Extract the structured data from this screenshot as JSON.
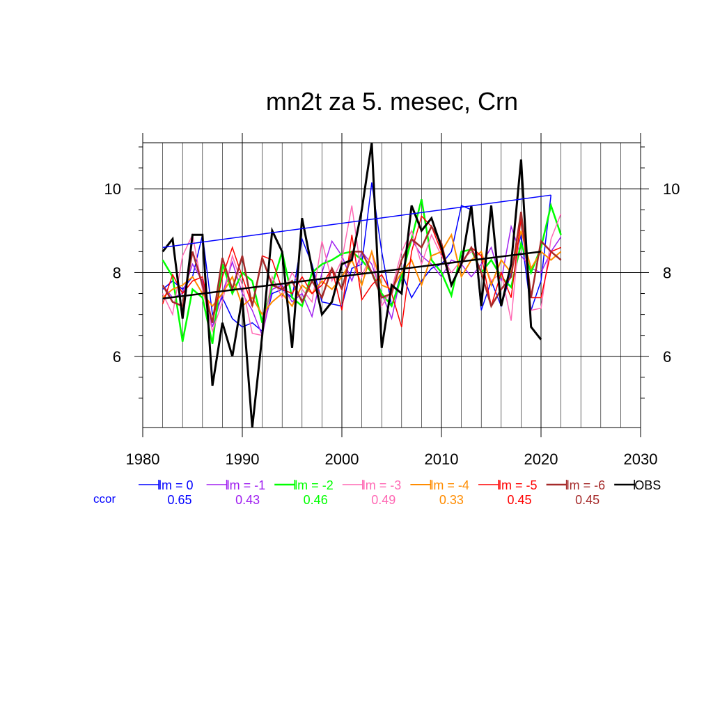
{
  "chart_data": {
    "type": "line",
    "title": "mn2t za 5. mesec, Crn",
    "xlabel": "",
    "ylabel": "",
    "xlim": [
      1980,
      2030
    ],
    "ylim": [
      4.3,
      11.1
    ],
    "x_ticks": [
      1980,
      1990,
      2000,
      2010,
      2020,
      2030
    ],
    "y_ticks": [
      6,
      8,
      10
    ],
    "grid": true,
    "ccor_label": "ccor",
    "series": [
      {
        "name": "lm = 0",
        "color": "#0000ff",
        "width": 1.5,
        "ccor": "0.65",
        "x": [
          1982,
          1983,
          1984,
          1985,
          1986,
          1987,
          1988,
          1989,
          1990,
          1991,
          1992,
          1993,
          1994,
          1995,
          1996,
          1997,
          1998,
          1999,
          2000,
          2001,
          2002,
          2003,
          2004,
          2005,
          2006,
          2007,
          2008,
          2009,
          2010,
          2011,
          2012,
          2013,
          2014,
          2015,
          2016,
          2017,
          2018,
          2019,
          2020,
          2021
        ],
        "y": [
          7.6,
          7.8,
          7.6,
          7.9,
          8.9,
          7.0,
          7.4,
          6.9,
          6.7,
          6.8,
          6.6,
          7.5,
          7.6,
          7.4,
          8.8,
          8.2,
          7.3,
          7.25,
          7.2,
          8.1,
          8.2,
          10.15,
          8.5,
          7.2,
          8.0,
          7.4,
          7.8,
          8.1,
          8.2,
          8.5,
          9.6,
          9.5,
          7.1,
          7.8,
          7.2,
          8.0,
          8.9,
          7.1,
          7.8,
          9.85
        ]
      },
      {
        "name": "lm = -1",
        "color": "#a020f0",
        "width": 1.5,
        "ccor": "0.43",
        "x": [
          1982,
          1983,
          1984,
          1985,
          1986,
          1987,
          1988,
          1989,
          1990,
          1991,
          1992,
          1993,
          1994,
          1995,
          1996,
          1997,
          1998,
          1999,
          2000,
          2001,
          2002,
          2003,
          2004,
          2005,
          2006,
          2007,
          2008,
          2009,
          2010,
          2011,
          2012,
          2013,
          2014,
          2015,
          2016,
          2017,
          2018,
          2019,
          2020,
          2021,
          2022
        ],
        "y": [
          7.7,
          7.4,
          7.5,
          8.2,
          7.8,
          6.7,
          7.5,
          8.25,
          7.5,
          7.1,
          6.5,
          7.6,
          7.7,
          7.3,
          7.5,
          6.95,
          8.0,
          8.75,
          8.4,
          7.8,
          8.5,
          8.2,
          7.5,
          6.9,
          8.0,
          8.8,
          8.4,
          8.2,
          7.9,
          8.3,
          8.2,
          7.9,
          8.2,
          8.6,
          7.8,
          9.1,
          8.4,
          8.1,
          8.0,
          8.5,
          8.85
        ]
      },
      {
        "name": "lm = -2",
        "color": "#00ff00",
        "width": 2.5,
        "ccor": "0.46",
        "x": [
          1982,
          1983,
          1984,
          1985,
          1986,
          1987,
          1988,
          1989,
          1990,
          1991,
          1992,
          1993,
          1994,
          1995,
          1996,
          1997,
          1998,
          1999,
          2000,
          2001,
          2002,
          2003,
          2004,
          2005,
          2006,
          2007,
          2008,
          2009,
          2010,
          2011,
          2012,
          2013,
          2014,
          2015,
          2016,
          2017,
          2018,
          2019,
          2020,
          2021,
          2022
        ],
        "y": [
          8.3,
          7.9,
          6.35,
          7.6,
          7.4,
          6.3,
          8.2,
          7.5,
          8.0,
          7.8,
          6.8,
          7.7,
          8.5,
          7.4,
          7.2,
          8.0,
          8.2,
          8.3,
          8.45,
          8.5,
          8.3,
          8.0,
          7.5,
          7.2,
          7.9,
          8.8,
          9.75,
          8.3,
          8.0,
          7.45,
          8.5,
          8.55,
          8.0,
          8.3,
          7.9,
          7.65,
          8.7,
          8.0,
          8.6,
          9.6,
          8.9
        ]
      },
      {
        "name": "lm = -3",
        "color": "#ff69b4",
        "width": 1.5,
        "ccor": "0.49",
        "x": [
          1982,
          1983,
          1984,
          1985,
          1986,
          1987,
          1988,
          1989,
          1990,
          1991,
          1992,
          1993,
          1994,
          1995,
          1996,
          1997,
          1998,
          1999,
          2000,
          2001,
          2002,
          2003,
          2004,
          2005,
          2006,
          2007,
          2008,
          2009,
          2010,
          2011,
          2012,
          2013,
          2014,
          2015,
          2016,
          2017,
          2018,
          2019,
          2020,
          2021,
          2022
        ],
        "y": [
          7.5,
          7.0,
          8.4,
          8.9,
          7.6,
          6.6,
          7.3,
          8.4,
          7.7,
          6.55,
          6.5,
          7.9,
          7.4,
          8.0,
          7.6,
          7.3,
          8.75,
          7.8,
          8.3,
          9.6,
          7.9,
          8.5,
          7.2,
          7.6,
          8.5,
          9.0,
          8.2,
          8.9,
          8.4,
          8.0,
          8.3,
          8.5,
          8.4,
          7.8,
          8.0,
          6.85,
          9.4,
          7.1,
          7.15,
          8.8,
          9.4
        ]
      },
      {
        "name": "lm = -4",
        "color": "#ff8c00",
        "width": 2.0,
        "ccor": "0.33",
        "x": [
          1982,
          1983,
          1984,
          1985,
          1986,
          1987,
          1988,
          1989,
          1990,
          1991,
          1992,
          1993,
          1994,
          1995,
          1996,
          1997,
          1998,
          1999,
          2000,
          2001,
          2002,
          2003,
          2004,
          2005,
          2006,
          2007,
          2008,
          2009,
          2010,
          2011,
          2012,
          2013,
          2014,
          2015,
          2016,
          2017,
          2018,
          2019,
          2020,
          2021,
          2022
        ],
        "y": [
          7.4,
          7.6,
          7.7,
          7.9,
          7.5,
          7.2,
          7.5,
          7.9,
          7.2,
          7.4,
          7.0,
          7.3,
          7.5,
          7.2,
          7.7,
          7.5,
          7.8,
          7.6,
          7.9,
          8.3,
          7.7,
          8.5,
          7.7,
          7.6,
          8.0,
          8.3,
          7.7,
          8.4,
          8.5,
          8.9,
          7.9,
          8.3,
          8.5,
          7.7,
          8.3,
          8.0,
          9.0,
          8.1,
          8.5,
          8.3,
          8.5
        ]
      },
      {
        "name": "lm = -5",
        "color": "#ff0000",
        "width": 1.5,
        "ccor": "0.45",
        "x": [
          1982,
          1983,
          1984,
          1985,
          1986,
          1987,
          1988,
          1989,
          1990,
          1991,
          1992,
          1993,
          1994,
          1995,
          1996,
          1997,
          1998,
          1999,
          2000,
          2001,
          2002,
          2003,
          2004,
          2005,
          2006,
          2007,
          2008,
          2009,
          2010,
          2011,
          2012,
          2013,
          2014,
          2015,
          2016,
          2017,
          2018,
          2019,
          2020,
          2021,
          2022
        ],
        "y": [
          7.25,
          7.95,
          7.5,
          7.8,
          7.9,
          6.8,
          7.9,
          8.6,
          7.9,
          7.2,
          8.4,
          8.3,
          7.6,
          7.5,
          7.9,
          7.5,
          7.7,
          8.1,
          7.1,
          8.9,
          7.35,
          7.7,
          7.95,
          7.5,
          6.7,
          8.5,
          9.35,
          9.1,
          8.5,
          7.7,
          8.2,
          8.6,
          8.4,
          7.2,
          8.0,
          7.4,
          9.3,
          7.4,
          7.4,
          8.5,
          8.6
        ]
      },
      {
        "name": "lm = -6",
        "color": "#a52a2a",
        "width": 2.5,
        "ccor": "0.45",
        "x": [
          1982,
          1983,
          1984,
          1985,
          1986,
          1987,
          1988,
          1989,
          1990,
          1991,
          1992,
          1993,
          1994,
          1995,
          1996,
          1997,
          1998,
          1999,
          2000,
          2001,
          2002,
          2003,
          2004,
          2005,
          2006,
          2007,
          2008,
          2009,
          2010,
          2011,
          2012,
          2013,
          2014,
          2015,
          2016,
          2017,
          2018,
          2019,
          2020,
          2021,
          2022
        ],
        "y": [
          7.7,
          7.3,
          7.2,
          8.5,
          7.7,
          6.8,
          8.35,
          7.6,
          8.4,
          7.2,
          8.35,
          7.7,
          7.6,
          7.8,
          7.3,
          7.8,
          7.4,
          8.1,
          7.6,
          8.5,
          8.5,
          8.0,
          7.4,
          7.5,
          8.3,
          8.8,
          8.6,
          9.1,
          8.7,
          7.7,
          8.2,
          8.6,
          8.0,
          7.2,
          7.6,
          7.9,
          9.45,
          7.4,
          8.75,
          8.5,
          8.3
        ]
      },
      {
        "name": "OBS",
        "color": "#000000",
        "width": 3.0,
        "ccor": "",
        "x": [
          1982,
          1983,
          1984,
          1985,
          1986,
          1987,
          1988,
          1989,
          1990,
          1991,
          1992,
          1993,
          1994,
          1995,
          1996,
          1997,
          1998,
          1999,
          2000,
          2001,
          2002,
          2003,
          2004,
          2005,
          2006,
          2007,
          2008,
          2009,
          2010,
          2011,
          2012,
          2013,
          2014,
          2015,
          2016,
          2017,
          2018,
          2019,
          2020
        ],
        "y": [
          8.5,
          8.8,
          6.9,
          8.9,
          8.9,
          5.3,
          6.8,
          6.0,
          7.4,
          4.3,
          6.5,
          9.0,
          8.5,
          6.2,
          9.3,
          8.1,
          7.0,
          7.3,
          8.2,
          8.3,
          9.5,
          11.1,
          6.2,
          7.7,
          7.5,
          9.6,
          9.0,
          9.3,
          8.6,
          7.7,
          8.2,
          9.6,
          7.2,
          9.6,
          7.2,
          8.2,
          10.7,
          6.7,
          6.4
        ]
      }
    ],
    "trend_lines": [
      {
        "name": "lm = 0 trend",
        "color": "#0000ff",
        "width": 1.5,
        "x": [
          1982,
          2021
        ],
        "y": [
          8.6,
          9.85
        ]
      },
      {
        "name": "OBS trend",
        "color": "#000000",
        "width": 2.5,
        "x": [
          1982,
          2020
        ],
        "y": [
          7.38,
          8.5
        ]
      }
    ]
  }
}
